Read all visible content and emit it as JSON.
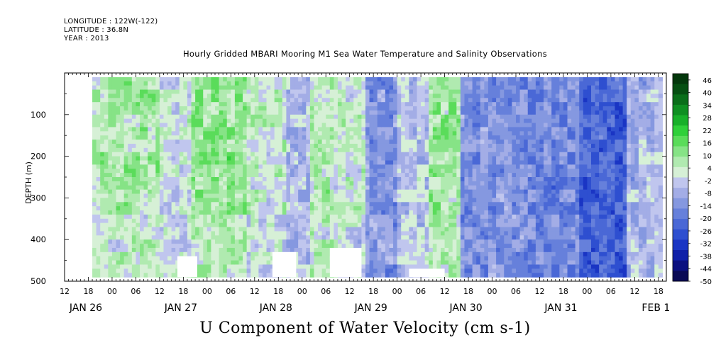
{
  "header": {
    "longitude": "LONGITUDE : 122W(-122)",
    "latitude": "LATITUDE : 36.8N",
    "year": "YEAR : 2013"
  },
  "chart_data": {
    "type": "heatmap",
    "title": "Hourly Gridded MBARI Mooring M1 Sea Water Temperature and Salinity Observations",
    "xlabel": "U Component of Water Velocity (cm s-1)",
    "ylabel": "DEPTH (m)",
    "x_range_hours": [
      -12,
      140
    ],
    "x_tick_labels": [
      "12",
      "18",
      "00",
      "06",
      "12",
      "18",
      "00",
      "06",
      "12",
      "18",
      "00",
      "06",
      "12",
      "18",
      "00",
      "06",
      "12",
      "18",
      "00",
      "06",
      "12",
      "18",
      "00",
      "06",
      "12",
      "18"
    ],
    "x_tick_hours": [
      -12,
      -6,
      0,
      6,
      12,
      18,
      24,
      30,
      36,
      42,
      48,
      54,
      60,
      66,
      72,
      78,
      84,
      90,
      96,
      102,
      108,
      114,
      120,
      126,
      132,
      138
    ],
    "day_labels": [
      {
        "label": "JAN 26",
        "hour": -12
      },
      {
        "label": "JAN 27",
        "hour": 12
      },
      {
        "label": "JAN 28",
        "hour": 36
      },
      {
        "label": "JAN 29",
        "hour": 60
      },
      {
        "label": "JAN 30",
        "hour": 84
      },
      {
        "label": "JAN 31",
        "hour": 108
      },
      {
        "label": "FEB  1",
        "hour": 132
      }
    ],
    "y_range": [
      0,
      500
    ],
    "y_inverted": true,
    "y_ticks": [
      100,
      200,
      300,
      400,
      500
    ],
    "data_extent": {
      "hour_start": -5,
      "hour_end": 139,
      "depth_top": 10,
      "depth_bottom": 490
    },
    "colorbar": {
      "labels": [
        "46",
        "40",
        "34",
        "28",
        "22",
        "16",
        "10",
        "4",
        "-2",
        "-8",
        "-14",
        "-20",
        "-26",
        "-32",
        "-38",
        "-44",
        "-50"
      ],
      "min": -50,
      "max": 49,
      "colors": [
        "#0a0a55",
        "#0b1080",
        "#1020a8",
        "#1a35c4",
        "#2e4fd0",
        "#4a68d6",
        "#6680db",
        "#8598e0",
        "#a3ade6",
        "#c0c6ee",
        "#d6f0d6",
        "#b0eab0",
        "#86e386",
        "#5adc5a",
        "#2fd03a",
        "#18b02a",
        "#0f8f22",
        "#0a6e1a",
        "#064f12",
        "#04380c"
      ]
    },
    "regimes": [
      {
        "from": -5,
        "to": 12,
        "mean": 7
      },
      {
        "from": 12,
        "to": 20,
        "mean": 0
      },
      {
        "from": 20,
        "to": 34,
        "mean": 10
      },
      {
        "from": 34,
        "to": 44,
        "mean": 3
      },
      {
        "from": 44,
        "to": 50,
        "mean": -6
      },
      {
        "from": 50,
        "to": 56,
        "mean": 6
      },
      {
        "from": 56,
        "to": 64,
        "mean": 2
      },
      {
        "from": 64,
        "to": 72,
        "mean": -12
      },
      {
        "from": 72,
        "to": 80,
        "mean": -4
      },
      {
        "from": 80,
        "to": 88,
        "mean": 8
      },
      {
        "from": 88,
        "to": 104,
        "mean": -14
      },
      {
        "from": 104,
        "to": 118,
        "mean": -16
      },
      {
        "from": 118,
        "to": 130,
        "mean": -24
      },
      {
        "from": 130,
        "to": 139,
        "mean": -6
      }
    ],
    "gaps": [
      {
        "from": 16.5,
        "to": 21.5,
        "depth_from": 440,
        "depth_to": 490
      },
      {
        "from": 40.5,
        "to": 46.5,
        "depth_from": 430,
        "depth_to": 490
      },
      {
        "from": 55,
        "to": 63,
        "depth_from": 420,
        "depth_to": 490
      },
      {
        "from": 75,
        "to": 84,
        "depth_from": 470,
        "depth_to": 490
      }
    ]
  }
}
